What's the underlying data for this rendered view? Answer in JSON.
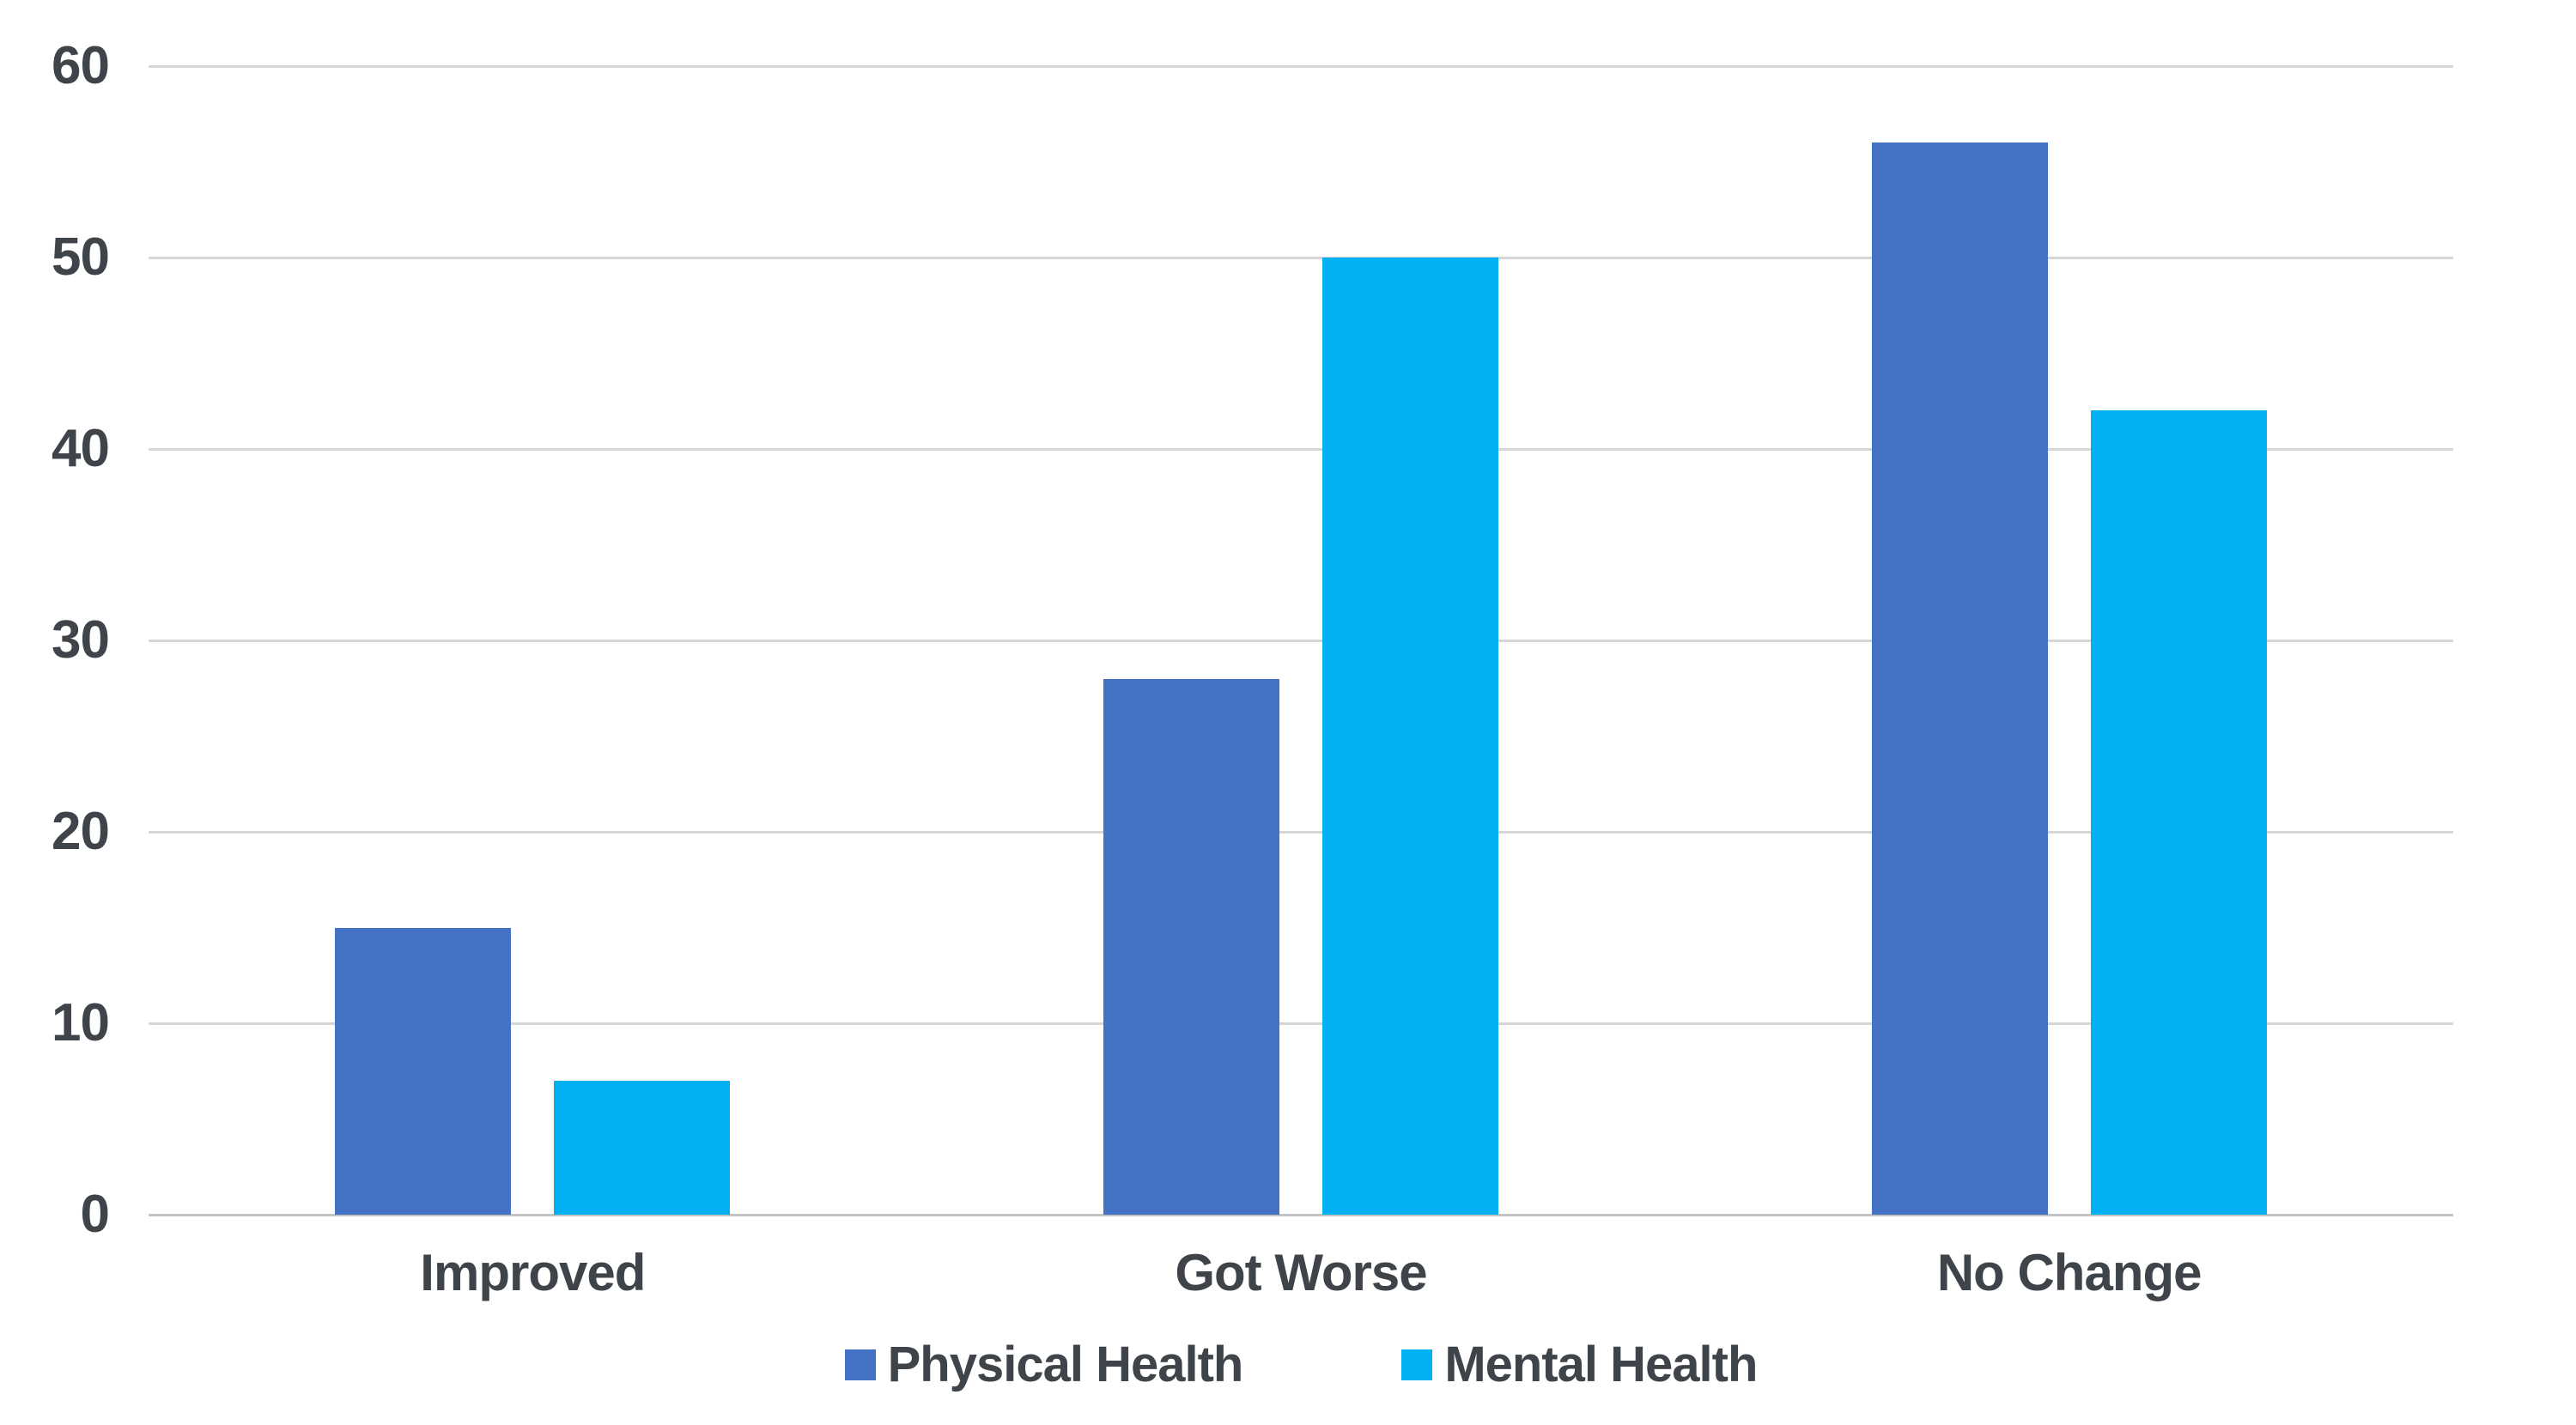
{
  "chart_data": {
    "type": "bar",
    "title": "",
    "xlabel": "",
    "ylabel": "",
    "categories": [
      "Improved",
      "Got Worse",
      "No Change"
    ],
    "series": [
      {
        "name": "Physical Health",
        "color": "#4472C4",
        "values": [
          15,
          28,
          56
        ]
      },
      {
        "name": "Mental Health",
        "color": "#00B0F0",
        "values": [
          7,
          50,
          42
        ]
      }
    ],
    "ylim": [
      0,
      60
    ],
    "yticks": [
      0,
      10,
      20,
      30,
      40,
      50,
      60
    ],
    "ytick_labels": [
      "0",
      "10",
      "20",
      "30",
      "40",
      "50",
      "60"
    ],
    "grid": "horizontal",
    "legend_position": "bottom"
  },
  "colors": {
    "background": "#FFFFFF",
    "gridline": "#D6D6D6",
    "axis_line": "#C4C4C4",
    "text": "#3F434A"
  }
}
